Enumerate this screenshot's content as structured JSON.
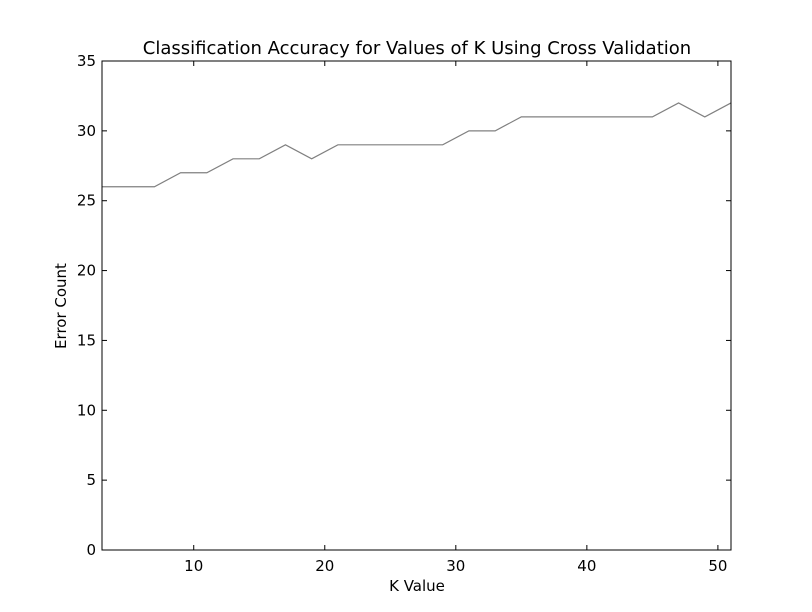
{
  "chart_data": {
    "type": "line",
    "title": "Classification Accuracy for Values of K Using Cross Validation",
    "xlabel": "K Value",
    "ylabel": "Error Count",
    "xlim": [
      3,
      51
    ],
    "ylim": [
      0,
      35
    ],
    "xticks": [
      10,
      20,
      30,
      40,
      50
    ],
    "yticks": [
      0,
      5,
      10,
      15,
      20,
      25,
      30,
      35
    ],
    "grid": false,
    "line_color": "#808080",
    "series": [
      {
        "x": [
          3,
          5,
          7,
          9,
          11,
          13,
          15,
          17,
          19,
          21,
          23,
          25,
          27,
          29,
          31,
          33,
          35,
          37,
          39,
          41,
          43,
          45,
          47,
          49,
          51
        ],
        "values": [
          26,
          26,
          26,
          27,
          27,
          28,
          28,
          29,
          28,
          29,
          29,
          29,
          29,
          29,
          30,
          30,
          31,
          31,
          31,
          31,
          31,
          31,
          32,
          31,
          32
        ]
      }
    ]
  }
}
